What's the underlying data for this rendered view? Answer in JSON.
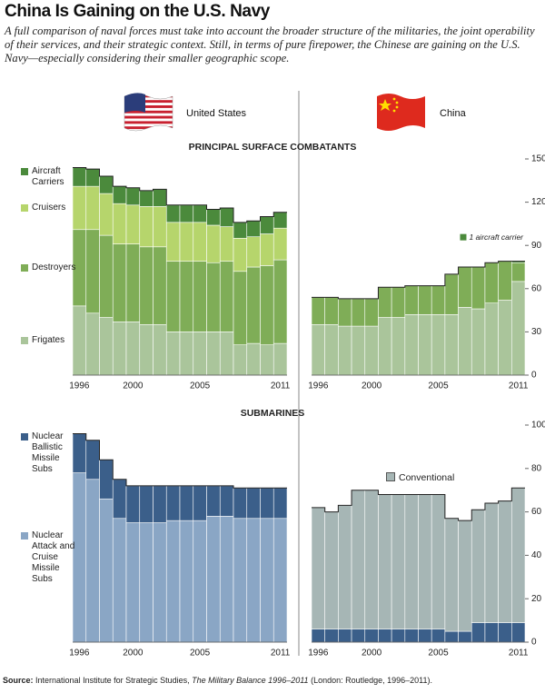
{
  "title": "China Is Gaining on the U.S. Navy",
  "description": "A full comparison of naval forces must take into account the broader structure of the militaries, the joint operability of their services, and their strategic context. Still, in terms of pure firepower, the Chinese are gaining on the U.S. Navy—especially considering their smaller geographic scope.",
  "countries": [
    "United States",
    "China"
  ],
  "source": [
    "Source:",
    "International Institute for Strategic Studies,",
    "The Military Balance 1996–2011",
    "(London: Routledge, 1996–2011)."
  ],
  "chart_data": [
    {
      "type": "bar",
      "stacked": true,
      "title": "PRINCIPAL SURFACE COMBATANTS",
      "legend": "left",
      "categories": [
        1996,
        null,
        null,
        null,
        2000,
        null,
        null,
        null,
        null,
        2005,
        null,
        null,
        null,
        null,
        null,
        2011
      ],
      "ylim": [
        0,
        150
      ],
      "series": [
        {
          "name": "Frigates",
          "color": "#aac59b",
          "values": [
            48,
            43,
            40,
            37,
            37,
            35,
            35,
            30,
            30,
            30,
            30,
            30,
            21,
            22,
            21,
            22
          ]
        },
        {
          "name": "Destroyers",
          "color": "#7fad57",
          "values": [
            53,
            58,
            57,
            54,
            54,
            54,
            54,
            49,
            49,
            49,
            48,
            49,
            51,
            53,
            55,
            58
          ]
        },
        {
          "name": "Cruisers",
          "color": "#b6d56c",
          "values": [
            30,
            30,
            29,
            28,
            27,
            28,
            28,
            27,
            27,
            27,
            26,
            24,
            23,
            21,
            22,
            22
          ]
        },
        {
          "name": "Aircraft Carriers",
          "color": "#4b8a3c",
          "values": [
            13,
            12,
            12,
            12,
            12,
            11,
            12,
            12,
            12,
            12,
            11,
            13,
            11,
            11,
            12,
            11
          ]
        }
      ]
    },
    {
      "type": "bar",
      "stacked": true,
      "annotation": "1 aircraft carrier",
      "categories": [
        1996,
        null,
        null,
        null,
        2000,
        null,
        null,
        null,
        null,
        2005,
        null,
        null,
        null,
        null,
        null,
        2011
      ],
      "ylim": [
        0,
        150
      ],
      "yticks": [
        0,
        30,
        60,
        90,
        120,
        150
      ],
      "series": [
        {
          "color": "#aac59b",
          "values": [
            35,
            35,
            34,
            34,
            34,
            40,
            40,
            42,
            42,
            42,
            42,
            47,
            46,
            50,
            52,
            65
          ]
        },
        {
          "color": "#7fad57",
          "values": [
            19,
            19,
            19,
            19,
            19,
            21,
            21,
            20,
            20,
            20,
            28,
            28,
            29,
            28,
            27,
            13
          ]
        },
        {
          "color": "#4b8a3c",
          "values": [
            0,
            0,
            0,
            0,
            0,
            0,
            0,
            0,
            0,
            0,
            0,
            0,
            0,
            0,
            0,
            1
          ]
        }
      ]
    },
    {
      "type": "bar",
      "stacked": true,
      "title": "SUBMARINES",
      "legend": "left",
      "categories": [
        1996,
        null,
        null,
        null,
        2000,
        null,
        null,
        null,
        null,
        2005,
        null,
        null,
        null,
        null,
        null,
        2011
      ],
      "ylim": [
        0,
        100
      ],
      "series": [
        {
          "name": "Nuclear Attack and Cruise Missile Subs",
          "color": "#8aa6c5",
          "values": [
            78,
            75,
            66,
            57,
            55,
            55,
            55,
            56,
            56,
            56,
            58,
            58,
            57,
            57,
            57,
            57
          ]
        },
        {
          "name": "Nuclear Ballistic Missile Subs",
          "color": "#3b5f8a",
          "values": [
            18,
            18,
            18,
            18,
            17,
            17,
            17,
            16,
            16,
            16,
            14,
            14,
            14,
            14,
            14,
            14
          ]
        }
      ]
    },
    {
      "type": "bar",
      "stacked": true,
      "legend": "inside",
      "categories": [
        1996,
        null,
        null,
        null,
        2000,
        null,
        null,
        null,
        null,
        2005,
        null,
        null,
        null,
        null,
        null,
        2011
      ],
      "ylim": [
        0,
        100
      ],
      "yticks": [
        0,
        20,
        40,
        60,
        80,
        100
      ],
      "series": [
        {
          "color": "#3b5f8a",
          "values": [
            6,
            6,
            6,
            6,
            6,
            6,
            6,
            6,
            6,
            6,
            5,
            5,
            9,
            9,
            9,
            9
          ]
        },
        {
          "name": "Conventional",
          "color": "#a6b6b5",
          "values": [
            56,
            54,
            57,
            64,
            64,
            62,
            62,
            62,
            62,
            62,
            52,
            51,
            52,
            55,
            56,
            62
          ]
        }
      ]
    }
  ]
}
